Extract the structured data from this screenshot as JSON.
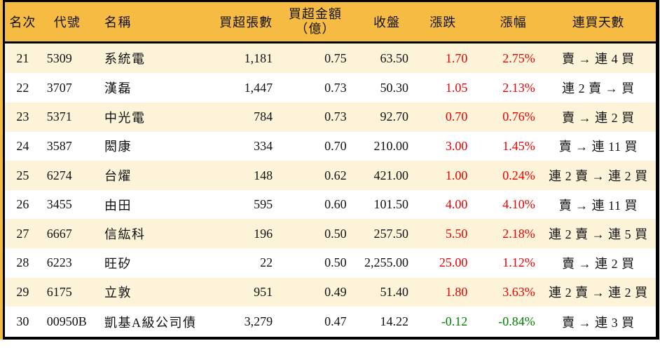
{
  "colors": {
    "header_bg": "#f6bb43",
    "row_alt_bg": "#fcf3d9",
    "up_text": "#ee0000",
    "down_text": "#008000",
    "border": "#000000"
  },
  "table": {
    "columns": [
      {
        "key": "rank",
        "label": "名次"
      },
      {
        "key": "code",
        "label": "代號"
      },
      {
        "key": "name",
        "label": "名稱"
      },
      {
        "key": "volume",
        "label": "買超張數"
      },
      {
        "key": "amount",
        "label": "買超金額",
        "label2": "（億）"
      },
      {
        "key": "close",
        "label": "收盤"
      },
      {
        "key": "change",
        "label": "漲跌"
      },
      {
        "key": "pct",
        "label": "漲幅"
      },
      {
        "key": "streak",
        "label": "連買天數"
      }
    ],
    "rows": [
      {
        "rank": "21",
        "code": "5309",
        "name": "系統電",
        "volume": "1,181",
        "amount": "0.75",
        "close": "63.50",
        "change": "1.70",
        "pct": "2.75%",
        "streak": "賣 → 連 4 買",
        "trend": "up"
      },
      {
        "rank": "22",
        "code": "3707",
        "name": "漢磊",
        "volume": "1,447",
        "amount": "0.73",
        "close": "50.30",
        "change": "1.05",
        "pct": "2.13%",
        "streak": "連 2 賣 → 買",
        "trend": "up"
      },
      {
        "rank": "23",
        "code": "5371",
        "name": "中光電",
        "volume": "784",
        "amount": "0.73",
        "close": "92.70",
        "change": "0.70",
        "pct": "0.76%",
        "streak": "賣 → 連 2 買",
        "trend": "up"
      },
      {
        "rank": "24",
        "code": "3587",
        "name": "閎康",
        "volume": "334",
        "amount": "0.70",
        "close": "210.00",
        "change": "3.00",
        "pct": "1.45%",
        "streak": "賣 → 連 11 買",
        "trend": "up"
      },
      {
        "rank": "25",
        "code": "6274",
        "name": "台燿",
        "volume": "148",
        "amount": "0.62",
        "close": "421.00",
        "change": "1.00",
        "pct": "0.24%",
        "streak": "連 2 賣 → 連 2 買",
        "trend": "up"
      },
      {
        "rank": "26",
        "code": "3455",
        "name": "由田",
        "volume": "595",
        "amount": "0.60",
        "close": "101.50",
        "change": "4.00",
        "pct": "4.10%",
        "streak": "賣 → 連 11 買",
        "trend": "up"
      },
      {
        "rank": "27",
        "code": "6667",
        "name": "信紘科",
        "volume": "196",
        "amount": "0.50",
        "close": "257.50",
        "change": "5.50",
        "pct": "2.18%",
        "streak": "連 2 賣 → 連 5 買",
        "trend": "up"
      },
      {
        "rank": "28",
        "code": "6223",
        "name": "旺矽",
        "volume": "22",
        "amount": "0.50",
        "close": "2,255.00",
        "change": "25.00",
        "pct": "1.12%",
        "streak": "賣 → 連 2 買",
        "trend": "up"
      },
      {
        "rank": "29",
        "code": "6175",
        "name": "立敦",
        "volume": "951",
        "amount": "0.49",
        "close": "51.40",
        "change": "1.80",
        "pct": "3.63%",
        "streak": "連 2 賣 → 連 2 買",
        "trend": "up"
      },
      {
        "rank": "30",
        "code": "00950B",
        "name": "凱基A級公司債",
        "volume": "3,279",
        "amount": "0.47",
        "close": "14.22",
        "change": "-0.12",
        "pct": "-0.84%",
        "streak": "賣 → 連 3 買",
        "trend": "down"
      }
    ]
  }
}
